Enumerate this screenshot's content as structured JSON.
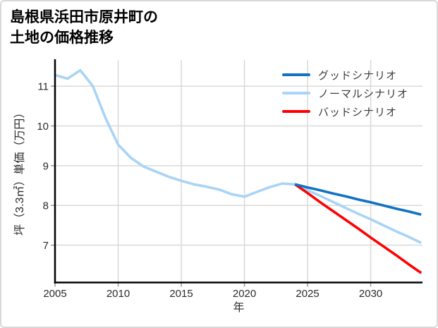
{
  "title": {
    "line1": "島根県浜田市原井町の",
    "line2": "土地の価格推移"
  },
  "chart_data": {
    "type": "line",
    "title": "島根県浜田市原井町の土地の価格推移",
    "xlabel": "年",
    "ylabel": "坪（3.3㎡）単価（万円）",
    "xlim": [
      2005,
      2034.1
    ],
    "ylim": [
      6.06,
      11.66
    ],
    "xticks": [
      2005,
      2010,
      2015,
      2020,
      2025,
      2030
    ],
    "yticks": [
      7,
      8,
      9,
      10,
      11
    ],
    "grid": true,
    "legend_position": "top-right-inside",
    "series": [
      {
        "name": "グッドシナリオ",
        "color": "#1173c4",
        "x": [
          2024,
          2025,
          2026,
          2027,
          2028,
          2029,
          2030,
          2031,
          2032,
          2033,
          2034
        ],
        "values": [
          8.53,
          8.45,
          8.38,
          8.3,
          8.23,
          8.15,
          8.08,
          8.0,
          7.92,
          7.85,
          7.77
        ]
      },
      {
        "name": "ノーマルシナリオ",
        "color": "#a9d4f5",
        "x": [
          2005,
          2006,
          2007,
          2008,
          2009,
          2010,
          2011,
          2012,
          2013,
          2014,
          2015,
          2016,
          2017,
          2018,
          2019,
          2020,
          2021,
          2022,
          2023,
          2024,
          2025,
          2026,
          2027,
          2028,
          2029,
          2030,
          2031,
          2032,
          2033,
          2034
        ],
        "values": [
          11.28,
          11.19,
          11.4,
          11.0,
          10.2,
          9.53,
          9.2,
          8.98,
          8.85,
          8.72,
          8.62,
          8.53,
          8.47,
          8.4,
          8.28,
          8.22,
          8.34,
          8.46,
          8.55,
          8.53,
          8.38,
          8.24,
          8.09,
          7.94,
          7.79,
          7.65,
          7.5,
          7.35,
          7.21,
          7.06
        ]
      },
      {
        "name": "バッドシナリオ",
        "color": "#fe0000",
        "x": [
          2024,
          2025,
          2026,
          2027,
          2028,
          2029,
          2030,
          2031,
          2032,
          2033,
          2034
        ],
        "values": [
          8.53,
          8.31,
          8.08,
          7.86,
          7.64,
          7.42,
          7.19,
          6.97,
          6.75,
          6.52,
          6.3
        ]
      }
    ],
    "colors": {
      "grid": "#d9d9d9",
      "spine": "#000000",
      "tick": "#999999",
      "tick_text": "#2b2b2b",
      "legend_text": "#3b3b3b",
      "background": "#ffffff",
      "card_border": "#d9d9d9"
    }
  }
}
